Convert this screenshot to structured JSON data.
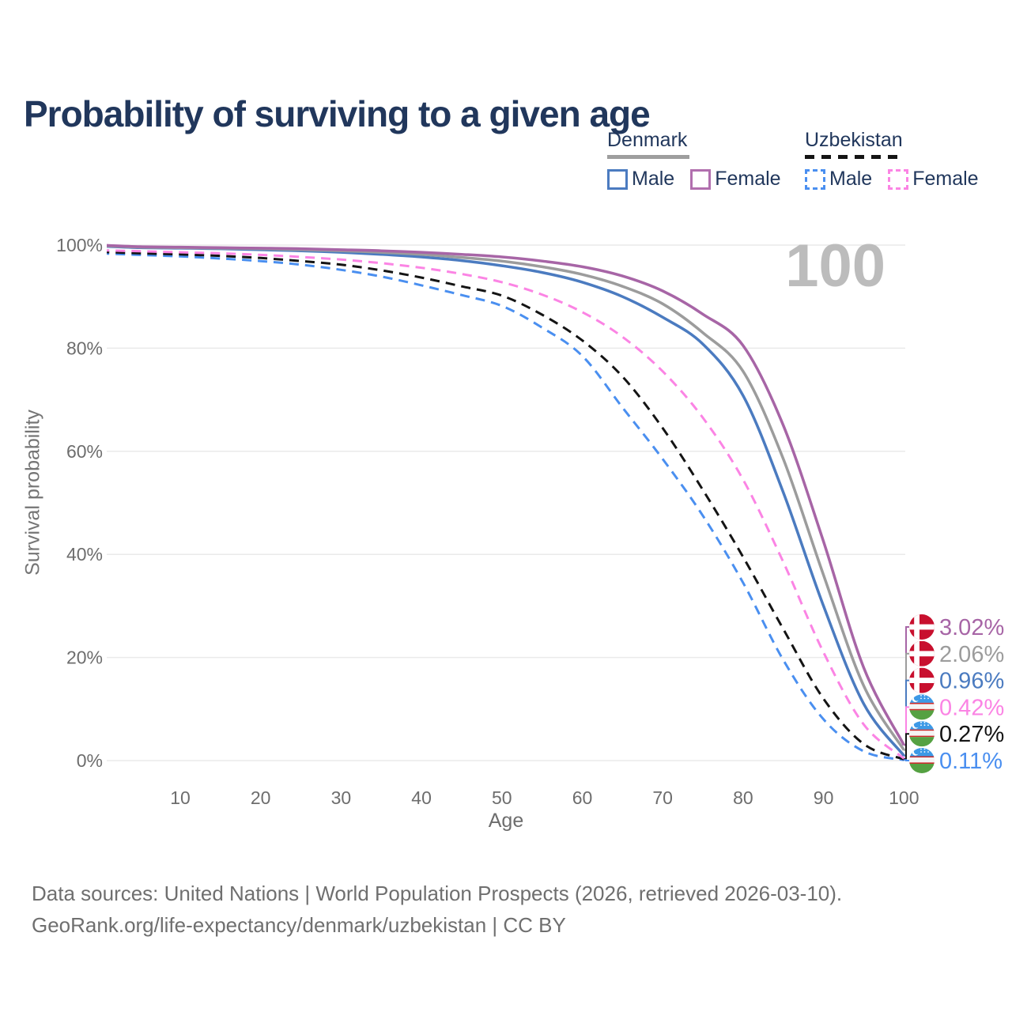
{
  "title": "Probability of surviving to a given age",
  "watermark": "100",
  "legend": {
    "groups": [
      {
        "name": "Denmark",
        "line_style": "solid",
        "underline_color": "#9e9e9e",
        "items": [
          {
            "label": "Male",
            "color": "#4b7bc0"
          },
          {
            "label": "Female",
            "color": "#b16fae"
          }
        ]
      },
      {
        "name": "Uzbekistan",
        "line_style": "dashed",
        "underline_color": "#141414",
        "items": [
          {
            "label": "Male",
            "color": "#4a8ff0"
          },
          {
            "label": "Female",
            "color": "#fb84e4"
          }
        ]
      }
    ]
  },
  "chart_data": {
    "type": "line",
    "title": "Probability of surviving to a given age",
    "xlabel": "Age",
    "ylabel": "Survival probability",
    "xlim": [
      0,
      100
    ],
    "ylim": [
      0,
      100
    ],
    "grid": true,
    "x_ticks": [
      10,
      20,
      30,
      40,
      50,
      60,
      70,
      80,
      90,
      100
    ],
    "y_ticks": [
      "0%",
      "20%",
      "40%",
      "60%",
      "80%",
      "100%"
    ],
    "x": [
      0,
      5,
      10,
      15,
      20,
      25,
      30,
      35,
      40,
      45,
      50,
      55,
      60,
      65,
      70,
      75,
      80,
      85,
      90,
      95,
      100
    ],
    "series": [
      {
        "name": "Denmark Female",
        "flag": "denmark",
        "color": "#a765a6",
        "dash": "solid",
        "end_label": "3.02%",
        "values": [
          100,
          99.7,
          99.6,
          99.5,
          99.4,
          99.3,
          99.1,
          98.9,
          98.6,
          98.2,
          97.7,
          96.9,
          95.8,
          94.0,
          91.1,
          86.6,
          80.5,
          65.0,
          42.5,
          18.0,
          3.02
        ]
      },
      {
        "name": "Denmark (all)",
        "flag": "denmark",
        "color": "#9c9c9c",
        "dash": "solid",
        "end_label": "2.06%",
        "values": [
          99.9,
          99.6,
          99.5,
          99.4,
          99.3,
          99.1,
          98.9,
          98.6,
          98.2,
          97.6,
          96.9,
          95.8,
          94.3,
          92.0,
          88.6,
          83.0,
          75.5,
          58.5,
          36.0,
          14.5,
          2.06
        ]
      },
      {
        "name": "Denmark Male",
        "flag": "denmark",
        "color": "#4b7bc0",
        "dash": "solid",
        "end_label": "0.96%",
        "values": [
          99.8,
          99.5,
          99.4,
          99.3,
          99.1,
          98.9,
          98.6,
          98.2,
          97.7,
          97.0,
          96.0,
          94.7,
          92.8,
          90.0,
          86.0,
          80.8,
          70.8,
          52.0,
          30.0,
          11.0,
          0.96
        ]
      },
      {
        "name": "Uzbekistan Female",
        "flag": "uzbekistan",
        "color": "#fb84e4",
        "dash": "dashed",
        "end_label": "0.42%",
        "values": [
          99.0,
          98.8,
          98.6,
          98.4,
          98.1,
          97.7,
          97.2,
          96.5,
          95.6,
          94.4,
          92.8,
          90.4,
          87.0,
          82.2,
          75.5,
          66.5,
          54.5,
          38.5,
          21.0,
          7.0,
          0.42
        ]
      },
      {
        "name": "Uzbekistan (all)",
        "flag": "uzbekistan",
        "color": "#141414",
        "dash": "dashed",
        "end_label": "0.27%",
        "values": [
          98.7,
          98.4,
          98.2,
          97.9,
          97.5,
          96.9,
          96.2,
          95.1,
          93.7,
          92.0,
          90.2,
          86.5,
          81.5,
          74.5,
          64.5,
          52.5,
          39.5,
          25.5,
          12.0,
          3.2,
          0.27
        ]
      },
      {
        "name": "Uzbekistan Male",
        "flag": "uzbekistan",
        "color": "#4a8ff0",
        "dash": "dashed",
        "end_label": "0.11%",
        "values": [
          98.4,
          98.1,
          97.8,
          97.4,
          96.9,
          96.2,
          95.2,
          93.9,
          92.2,
          90.3,
          88.2,
          84.0,
          78.5,
          68.5,
          58.5,
          47.5,
          34.5,
          19.5,
          8.0,
          1.8,
          0.11
        ]
      }
    ]
  },
  "footer": {
    "line1": "Data sources: United Nations | World Population Prospects (2026, retrieved 2026-03-10).",
    "line2": "GeoRank.org/life-expectancy/denmark/uzbekistan | CC BY"
  }
}
